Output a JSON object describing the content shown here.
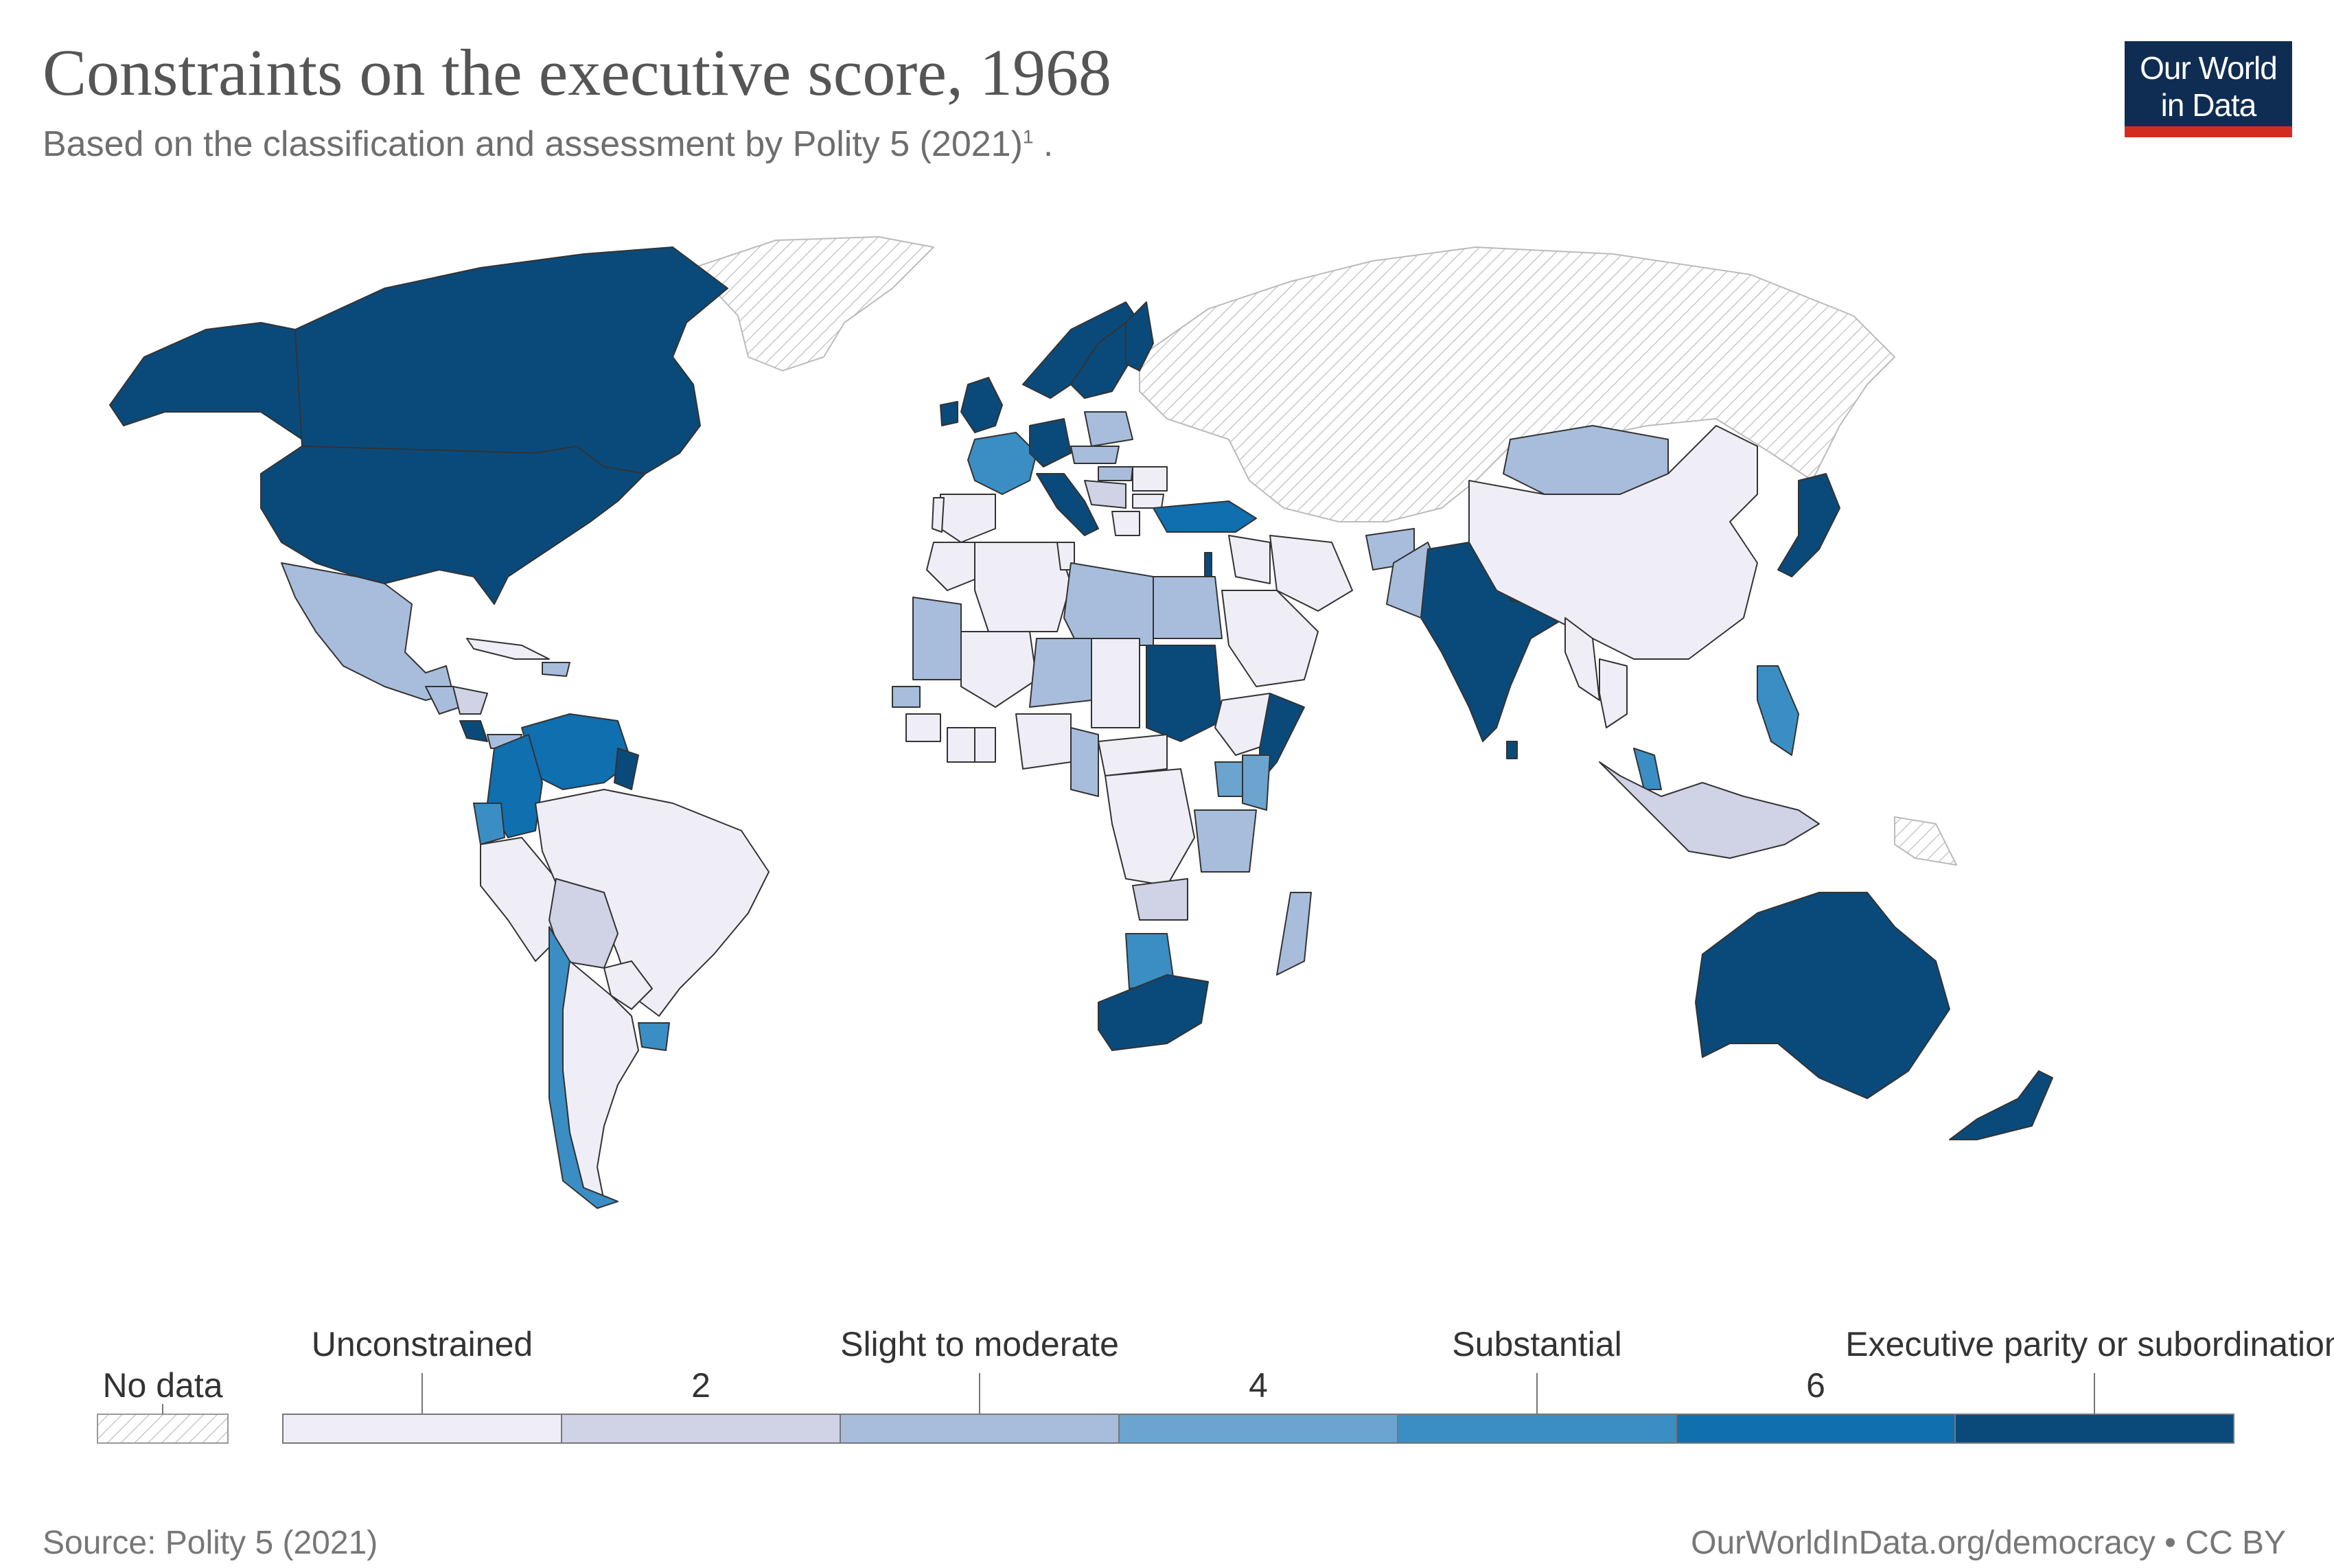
{
  "header": {
    "title": "Constraints on the executive score, 1968",
    "subtitle": "Based on the classification and assessment by Polity 5 (2021)",
    "subtitle_note": "1",
    "subtitle_end": " ."
  },
  "logo": {
    "line1": "Our World",
    "line2": "in Data",
    "bg": "#0f2d52",
    "accent": "#d42b21"
  },
  "legend": {
    "no_data_label": "No data",
    "categories": [
      "Unconstrained",
      "Slight to moderate",
      "Substantial",
      "Executive parity or subordination"
    ],
    "numeric_ticks": [
      "2",
      "4",
      "6"
    ],
    "colors": [
      "#efeef6",
      "#d0d2e6",
      "#a8bddc",
      "#6aa4cf",
      "#3a8ec4",
      "#0f6faf",
      "#0a4a7a"
    ]
  },
  "footer": {
    "source": "Source: Polity 5 (2021)",
    "credit": "OurWorldInData.org/democracy • CC BY"
  },
  "chart_data": {
    "type": "choropleth",
    "year": 1968,
    "scale_min": 1,
    "scale_max": 7,
    "values": {
      "United States": 7,
      "Canada": 7,
      "Mexico": 3,
      "Guatemala": 3,
      "Honduras": 2,
      "Nicaragua": 2,
      "Costa Rica": 7,
      "Panama": 3,
      "Cuba": 1,
      "Haiti": 1,
      "Dominican Republic": 3,
      "Venezuela": 6,
      "Colombia": 6,
      "Ecuador": 5,
      "Peru": 1,
      "Bolivia": 2,
      "Brazil": 1,
      "Paraguay": 1,
      "Argentina": 1,
      "Chile": 5,
      "Uruguay": 5,
      "Guyana": 7,
      "United Kingdom": 7,
      "Ireland": 7,
      "France": 5,
      "Spain": 1,
      "Portugal": 1,
      "Italy": 7,
      "Germany": 7,
      "Switzerland": 7,
      "Norway": 7,
      "Sweden": 7,
      "Finland": 7,
      "Denmark": 7,
      "Netherlands": 7,
      "Belgium": 7,
      "Poland": 3,
      "Czechoslovakia": 3,
      "Hungary": 3,
      "Romania": 1,
      "Bulgaria": 1,
      "Yugoslavia": 2,
      "Greece": 1,
      "Turkey": 6,
      "Mongolia": 3,
      "China": 1,
      "Japan": 7,
      "India": 7,
      "Pakistan": 3,
      "Afghanistan": 3,
      "Iran": 1,
      "Iraq": 1,
      "Saudi Arabia": 1,
      "Israel": 7,
      "Nepal": 7,
      "Sri Lanka": 7,
      "Burma": 1,
      "Thailand": 1,
      "Malaysia": 5,
      "Philippines": 5,
      "Indonesia": 2,
      "Australia": 7,
      "New Zealand": 7,
      "Papua New Guinea": 1,
      "Morocco": 1,
      "Algeria": 1,
      "Tunisia": 1,
      "Libya": 3,
      "Egypt": 3,
      "Mauritania": 3,
      "Mali": 1,
      "Niger": 3,
      "Chad": 1,
      "Sudan": 7,
      "Ethiopia": 1,
      "Somalia": 7,
      "Kenya": 3,
      "Uganda": 4,
      "Tanzania": 3,
      "Nigeria": 1,
      "Ghana": 1,
      "Ivory Coast": 1,
      "Senegal": 3,
      "Guinea": 1,
      "Liberia": 3,
      "Cameroon": 3,
      "Gabon": 3,
      "Congo": 1,
      "DR Congo": 1,
      "Central African Republic": 1,
      "Zambia": 2,
      "Malawi": 1,
      "Botswana": 5,
      "South Africa": 7,
      "Madagascar": 3
    }
  }
}
